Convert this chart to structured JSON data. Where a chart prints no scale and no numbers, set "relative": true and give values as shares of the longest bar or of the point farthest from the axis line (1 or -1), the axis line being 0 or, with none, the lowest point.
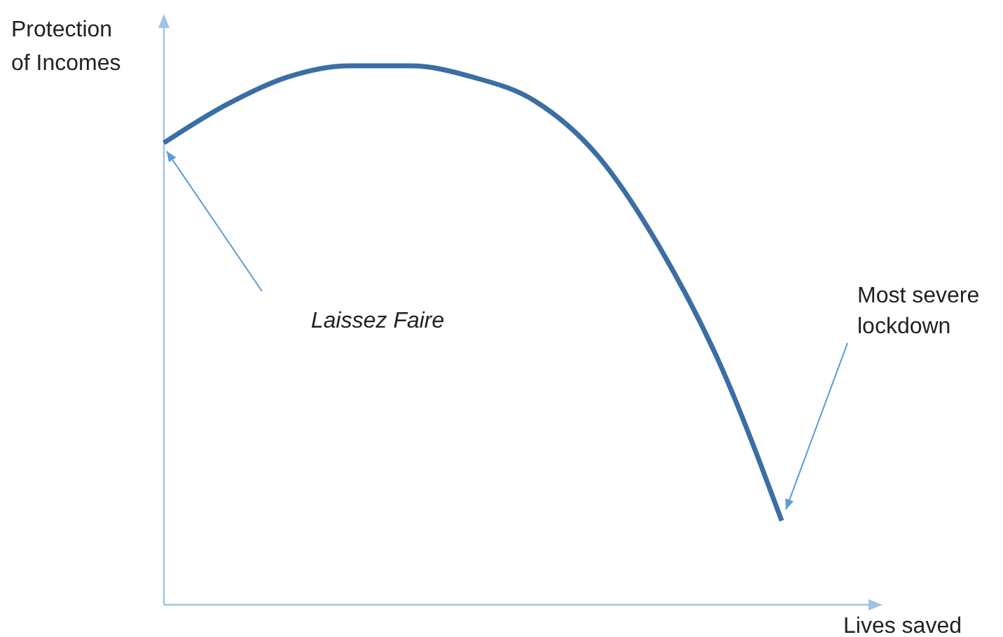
{
  "chart_data": {
    "type": "line",
    "relative": true,
    "xlabel": "Lives saved",
    "ylabel": "Protection of Incomes",
    "categories": [
      null,
      null,
      null,
      null,
      null,
      null,
      null,
      null,
      null,
      null,
      null
    ],
    "series": [
      {
        "color": "#3a6ea5",
        "values": [
          0.857,
          0.927,
          0.979,
          1,
          1,
          0.979,
          0.935,
          0.836,
          0.668,
          0.447,
          0.156
        ]
      }
    ],
    "annotations": [
      "Laissez Faire",
      "Most severe lockdown"
    ],
    "marker": "none",
    "line_style": "solid"
  }
}
